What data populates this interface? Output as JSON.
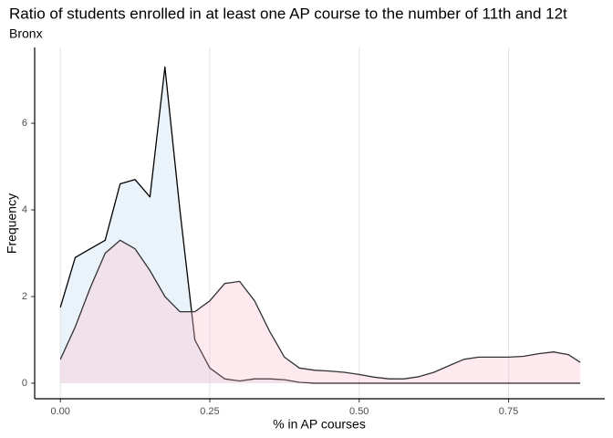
{
  "chart_data": {
    "type": "density",
    "title": "Ratio of students enrolled in at least one AP course to the number of 11th and 12t",
    "subtitle": "Bronx",
    "x_label": "% in AP courses",
    "y_label": "Frequency",
    "x": [
      0,
      0.025,
      0.05,
      0.075,
      0.1,
      0.125,
      0.15,
      0.175,
      0.2,
      0.225,
      0.25,
      0.275,
      0.3,
      0.325,
      0.35,
      0.375,
      0.4,
      0.425,
      0.45,
      0.475,
      0.5,
      0.525,
      0.55,
      0.575,
      0.6,
      0.625,
      0.65,
      0.675,
      0.7,
      0.725,
      0.75,
      0.775,
      0.8,
      0.825,
      0.85,
      0.87
    ],
    "series": [
      {
        "color": "#000000",
        "fill": "#c6def1",
        "values": [
          1.75,
          2.9,
          3.1,
          3.3,
          4.6,
          4.7,
          4.3,
          7.3,
          4.0,
          1.0,
          0.35,
          0.1,
          0.05,
          0.1,
          0.1,
          0.08,
          0.02,
          0,
          0,
          0,
          0,
          0,
          0,
          0,
          0,
          0,
          0,
          0,
          0,
          0,
          0,
          0,
          0,
          0,
          0,
          0
        ]
      },
      {
        "color": "#333333",
        "fill": "#f9c0cf",
        "values": [
          0.55,
          1.3,
          2.2,
          3.0,
          3.3,
          3.1,
          2.6,
          2.0,
          1.65,
          1.65,
          1.9,
          2.3,
          2.35,
          1.9,
          1.2,
          0.6,
          0.35,
          0.3,
          0.28,
          0.25,
          0.2,
          0.14,
          0.1,
          0.1,
          0.15,
          0.25,
          0.4,
          0.55,
          0.6,
          0.6,
          0.6,
          0.62,
          0.68,
          0.72,
          0.66,
          0.48
        ]
      }
    ],
    "xlim": [
      -0.043,
      0.911
    ],
    "ylim": [
      -0.36,
      7.75
    ],
    "xticks": [
      {
        "value": 0,
        "label": "0.00"
      },
      {
        "value": 0.25,
        "label": "0.25"
      },
      {
        "value": 0.5,
        "label": "0.50"
      },
      {
        "value": 0.75,
        "label": "0.75"
      }
    ],
    "yticks": [
      0,
      2,
      4,
      6
    ],
    "grid": "x"
  }
}
